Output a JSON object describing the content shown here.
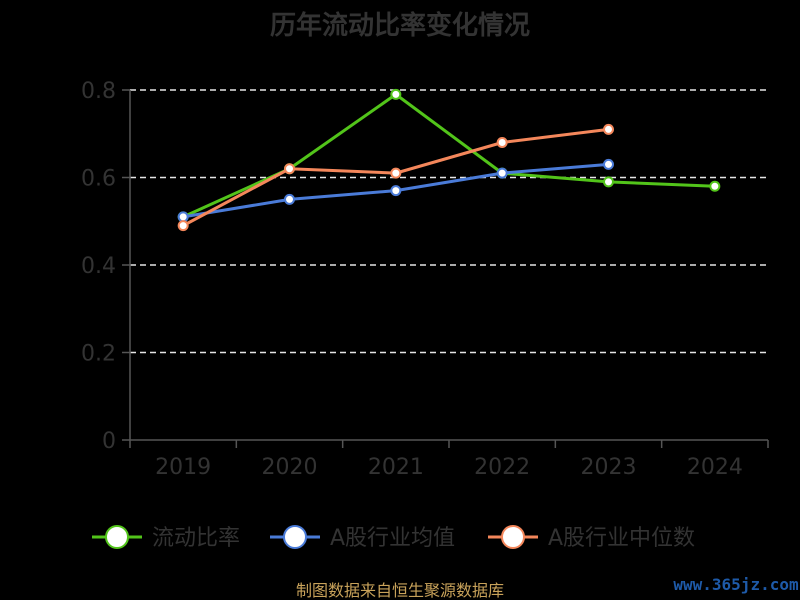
{
  "chart_data": {
    "type": "line",
    "title": "历年流动比率变化情况",
    "categories": [
      "2019",
      "2020",
      "2021",
      "2022",
      "2023",
      "2024"
    ],
    "yticks": [
      "0",
      "0.2",
      "0.4",
      "0.6",
      "0.8"
    ],
    "ylim": [
      0,
      0.8
    ],
    "grid": true,
    "legend_position": "bottom",
    "series": [
      {
        "name": "流动比率",
        "color": "#52c41a",
        "values": [
          0.51,
          0.62,
          0.79,
          0.61,
          0.59,
          0.58
        ]
      },
      {
        "name": "A股行业均值",
        "color": "#4a7bd8",
        "values": [
          0.51,
          0.55,
          0.57,
          0.61,
          0.63,
          null
        ]
      },
      {
        "name": "A股行业中位数",
        "color": "#f4875b",
        "values": [
          0.49,
          0.62,
          0.61,
          0.68,
          0.71,
          null
        ]
      }
    ]
  },
  "footer": {
    "source": "制图数据来自恒生聚源数据库",
    "watermark": "www.365jz.com"
  }
}
